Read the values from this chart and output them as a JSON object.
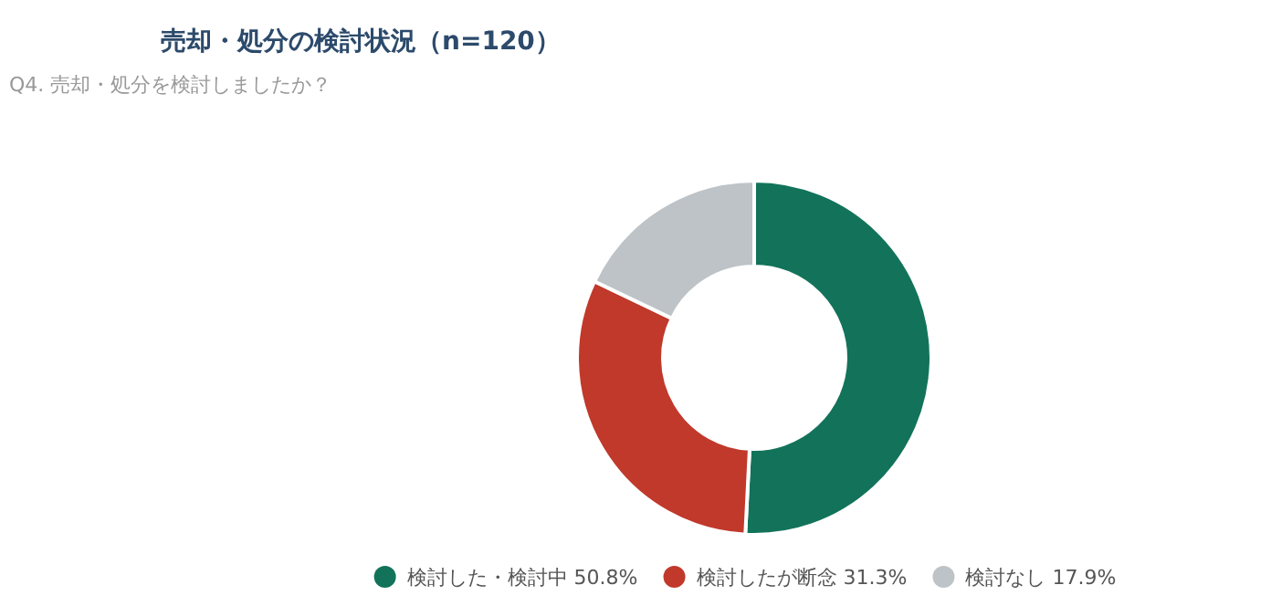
{
  "chart_data": {
    "type": "donut",
    "title": "売却・処分の検討状況（n=120）",
    "subtitle": "Q4. 売却・処分を検討しましたか？",
    "categories": [
      "検討した・検討中",
      "検討したが断念",
      "検討なし"
    ],
    "values": [
      50.8,
      31.3,
      17.9
    ],
    "value_labels": [
      "50.8%",
      "31.3%",
      "17.9%"
    ],
    "colors": [
      "#12735a",
      "#c0392b",
      "#bdc3c7"
    ],
    "legend": "bottom"
  }
}
